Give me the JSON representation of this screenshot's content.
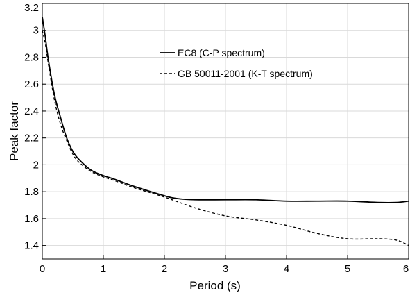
{
  "chart_data": {
    "type": "line",
    "xlabel": "Period (s)",
    "ylabel": "Peak factor",
    "xlim": [
      0,
      6
    ],
    "ylim": [
      1.3,
      3.2
    ],
    "xticks": [
      "0",
      "1",
      "2",
      "3",
      "4",
      "5",
      "6"
    ],
    "yticks": [
      "1.4",
      "1.6",
      "1.8",
      "2",
      "2.2",
      "2.4",
      "2.6",
      "2.8",
      "3",
      "3.2"
    ],
    "grid": true,
    "legend_position": "top-right",
    "series": [
      {
        "name": "EC8 (C-P spectrum)",
        "style": "solid",
        "x": [
          0,
          0.05,
          0.1,
          0.2,
          0.3,
          0.4,
          0.5,
          0.6,
          0.8,
          1.0,
          1.2,
          1.5,
          2.0,
          2.2,
          2.5,
          3.0,
          3.5,
          4.0,
          4.5,
          5.0,
          5.5,
          5.8,
          6.0
        ],
        "y": [
          3.1,
          2.95,
          2.78,
          2.52,
          2.35,
          2.2,
          2.1,
          2.04,
          1.96,
          1.92,
          1.89,
          1.84,
          1.77,
          1.75,
          1.74,
          1.74,
          1.74,
          1.73,
          1.73,
          1.73,
          1.72,
          1.72,
          1.73
        ]
      },
      {
        "name": "GB 50011-2001 (K-T spectrum)",
        "style": "dashed",
        "x": [
          0,
          0.05,
          0.1,
          0.2,
          0.3,
          0.4,
          0.5,
          0.6,
          0.8,
          1.0,
          1.2,
          1.5,
          2.0,
          2.5,
          3.0,
          3.5,
          4.0,
          4.5,
          5.0,
          5.5,
          5.8,
          6.0
        ],
        "y": [
          3.0,
          2.9,
          2.75,
          2.48,
          2.3,
          2.18,
          2.08,
          2.02,
          1.95,
          1.91,
          1.88,
          1.83,
          1.76,
          1.68,
          1.62,
          1.59,
          1.55,
          1.49,
          1.45,
          1.45,
          1.44,
          1.4
        ]
      }
    ]
  }
}
